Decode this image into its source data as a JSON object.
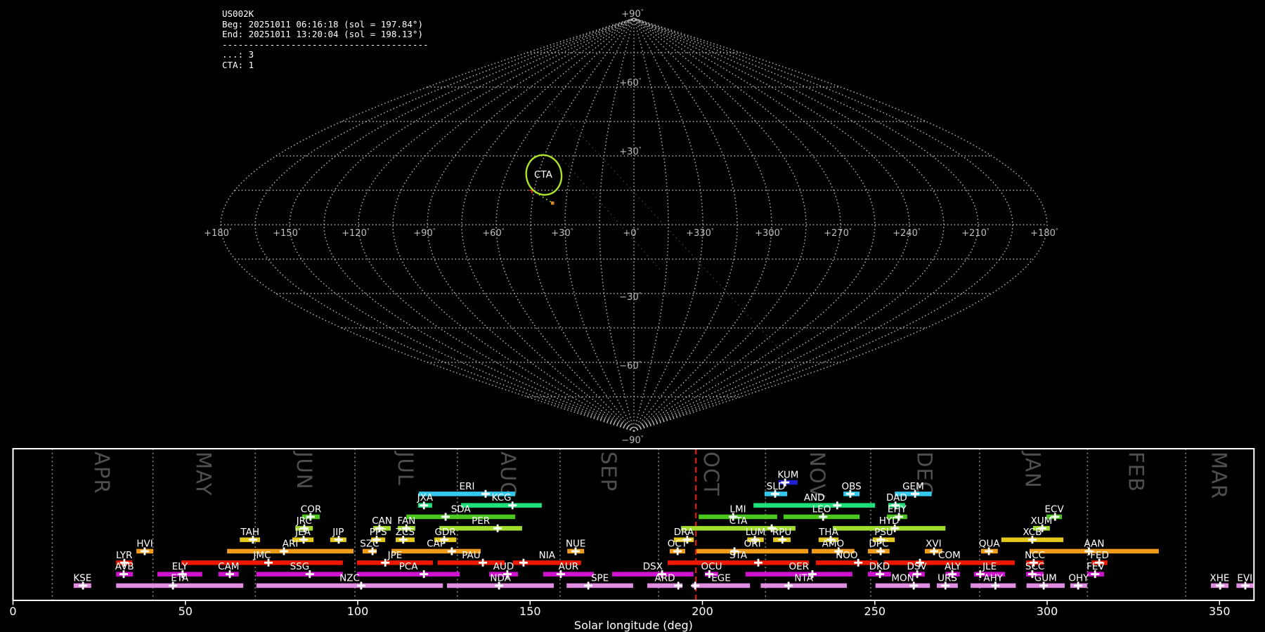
{
  "header": {
    "station": "US002K",
    "lines": [
      "US002K",
      "Beg: 20251011 06:16:18 (sol = 197.84°)",
      "End: 20251011 13:20:04 (sol = 198.13°)",
      "---------------------------------------",
      "...: 3",
      "CTA: 1"
    ]
  },
  "sky_map": {
    "grid_step_deg": 15,
    "grid_color": "#b2b2b2",
    "label_color": "#bdbdbd",
    "pole_labels": {
      "top": "+90",
      "bottom": "−90"
    },
    "lat_labels": [
      {
        "text": "+60",
        "lat": 60
      },
      {
        "text": "+30",
        "lat": 30
      },
      {
        "text": "−30",
        "lat": -30
      },
      {
        "text": "−60",
        "lat": -60
      }
    ],
    "lon_labels": [
      {
        "text": "+180",
        "lon": 180
      },
      {
        "text": "+150",
        "lon": 150
      },
      {
        "text": "+120",
        "lon": 120
      },
      {
        "text": "+90",
        "lon": 90
      },
      {
        "text": "+60",
        "lon": 60
      },
      {
        "text": "+30",
        "lon": 30
      },
      {
        "text": "+0",
        "lon": 0
      },
      {
        "text": "+330",
        "lon": -30
      },
      {
        "text": "+300",
        "lon": -60
      },
      {
        "text": "+270",
        "lon": -90
      },
      {
        "text": "+240",
        "lon": -120
      },
      {
        "text": "+210",
        "lon": -150
      },
      {
        "text": "+180",
        "lon": -180
      }
    ],
    "highlight": {
      "label": "CTA",
      "lon": 42.2,
      "lat": 21.7,
      "color": "#ade32a"
    },
    "meteor_trail": {
      "from": {
        "lon": 46.0,
        "lat": 15.0
      },
      "to": {
        "lon": 36.0,
        "lat": 9.5
      },
      "color": "#8be022",
      "start_marker_color": "#e03020",
      "end_marker_color": "#e08826"
    },
    "faint_trails": [
      {
        "from": {
          "lon": 63.3,
          "lat": 54.2
        },
        "to": {
          "lon": -156.0,
          "lat": -62.8
        }
      },
      {
        "from": {
          "lon": 35.5,
          "lat": 28.5
        },
        "to": {
          "lon": -12.4,
          "lat": -19.9
        }
      }
    ]
  },
  "chart_data": {
    "type": "timeline",
    "xlabel": "Solar longitude (deg)",
    "xlim": [
      0,
      360
    ],
    "x_ticks": [
      0,
      50,
      100,
      150,
      200,
      250,
      300,
      350
    ],
    "current_sol": 198.1,
    "current_sol_color": "#ea1515",
    "month_label_color": "#4f4f4f",
    "month_line_color": "#8f8f8f",
    "months": [
      {
        "name": "APR",
        "start": 11.4
      },
      {
        "name": "MAY",
        "start": 40.6
      },
      {
        "name": "JUN",
        "start": 70.3
      },
      {
        "name": "JUL",
        "start": 99.2
      },
      {
        "name": "AUG",
        "start": 128.9
      },
      {
        "name": "SEP",
        "start": 158.7
      },
      {
        "name": "OCT",
        "start": 187.3
      },
      {
        "name": "NOV",
        "start": 218.3
      },
      {
        "name": "DEC",
        "start": 248.8
      },
      {
        "name": "JAN",
        "start": 280.4
      },
      {
        "name": "FEB",
        "start": 311.7
      },
      {
        "name": "MAR",
        "start": 340.2
      }
    ],
    "rows": [
      {
        "key": "blue",
        "color": "#1f1fd4"
      },
      {
        "key": "cyan",
        "color": "#35c8ef"
      },
      {
        "key": "spring",
        "color": "#1fe07a"
      },
      {
        "key": "green",
        "color": "#4cc71e"
      },
      {
        "key": "ygreen",
        "color": "#a2dd2e"
      },
      {
        "key": "yellow",
        "color": "#e5c91a"
      },
      {
        "key": "orange",
        "color": "#f09c1a"
      },
      {
        "key": "red",
        "color": "#ec1801"
      },
      {
        "key": "magenta",
        "color": "#cf13cf"
      },
      {
        "key": "violet",
        "color": "#df8ce1"
      }
    ],
    "showers": [
      {
        "code": "KUM",
        "row": "blue",
        "start": 222.1,
        "end": 227.6,
        "peak": 224.0
      },
      {
        "code": "ERI",
        "row": "cyan",
        "start": 117.7,
        "end": 145.7,
        "peak": 137.1
      },
      {
        "code": "SLD",
        "row": "cyan",
        "start": 218.0,
        "end": 224.6,
        "peak": 221.1
      },
      {
        "code": "OBS",
        "row": "cyan",
        "start": 240.9,
        "end": 245.6,
        "peak": 242.9
      },
      {
        "code": "GEM",
        "row": "cyan",
        "start": 255.8,
        "end": 266.5,
        "peak": 261.7
      },
      {
        "code": "JXA",
        "row": "spring",
        "start": 117.5,
        "end": 121.6,
        "peak": 119.2
      },
      {
        "code": "KCG",
        "row": "spring",
        "start": 130.0,
        "end": 153.4,
        "peak": 144.9
      },
      {
        "code": "AND",
        "row": "spring",
        "start": 214.8,
        "end": 250.1,
        "peak": 239.1
      },
      {
        "code": "DAD",
        "row": "spring",
        "start": 253.9,
        "end": 258.8,
        "peak": 256.0
      },
      {
        "code": "COR",
        "row": "green",
        "start": 83.9,
        "end": 89.0,
        "peak": 86.3
      },
      {
        "code": "SDA",
        "row": "green",
        "start": 114.1,
        "end": 145.7,
        "peak": 125.5
      },
      {
        "code": "LMI",
        "row": "green",
        "start": 198.9,
        "end": 221.7,
        "peak": 208.9
      },
      {
        "code": "LEO",
        "row": "green",
        "start": 223.5,
        "end": 245.6,
        "peak": 235.0
      },
      {
        "code": "EHY",
        "row": "green",
        "start": 253.5,
        "end": 259.4,
        "peak": 257.0
      },
      {
        "code": "ECV",
        "row": "green",
        "start": 299.8,
        "end": 304.3,
        "peak": 302.3
      },
      {
        "code": "JRC",
        "row": "ygreen",
        "start": 81.9,
        "end": 87.0,
        "peak": 84.5
      },
      {
        "code": "CAN",
        "row": "ygreen",
        "start": 104.5,
        "end": 109.6,
        "peak": 106.3
      },
      {
        "code": "FAN",
        "row": "ygreen",
        "start": 111.6,
        "end": 116.7,
        "peak": 114.1
      },
      {
        "code": "PER",
        "row": "ygreen",
        "start": 123.7,
        "end": 147.7,
        "peak": 140.6
      },
      {
        "code": "CTA",
        "row": "ygreen",
        "start": 193.8,
        "end": 227.0,
        "peak": 220.1
      },
      {
        "code": "HYD",
        "row": "ygreen",
        "start": 237.8,
        "end": 270.5,
        "peak": 255.8
      },
      {
        "code": "XUM",
        "row": "ygreen",
        "start": 295.9,
        "end": 300.8,
        "peak": 298.6
      },
      {
        "code": "TAH",
        "row": "yellow",
        "start": 65.8,
        "end": 71.7,
        "peak": 69.6
      },
      {
        "code": "JEA",
        "row": "yellow",
        "start": 81.0,
        "end": 87.2,
        "peak": 84.3
      },
      {
        "code": "JIP",
        "row": "yellow",
        "start": 92.0,
        "end": 96.7,
        "peak": 94.5
      },
      {
        "code": "PPS",
        "row": "yellow",
        "start": 103.9,
        "end": 108.0,
        "peak": 105.5
      },
      {
        "code": "ZCS",
        "row": "yellow",
        "start": 111.0,
        "end": 116.5,
        "peak": 113.2
      },
      {
        "code": "GDR",
        "row": "yellow",
        "start": 122.2,
        "end": 128.6,
        "peak": 125.1
      },
      {
        "code": "DRA",
        "row": "yellow",
        "start": 191.7,
        "end": 197.5,
        "peak": 195.6
      },
      {
        "code": "LUM",
        "row": "yellow",
        "start": 213.0,
        "end": 217.8,
        "peak": 215.2
      },
      {
        "code": "RPU",
        "row": "yellow",
        "start": 220.5,
        "end": 225.6,
        "peak": 223.2
      },
      {
        "code": "THA",
        "row": "yellow",
        "start": 233.7,
        "end": 239.5,
        "peak": 237.2
      },
      {
        "code": "PSU",
        "row": "yellow",
        "start": 249.4,
        "end": 255.8,
        "peak": 251.7
      },
      {
        "code": "XCB",
        "row": "yellow",
        "start": 286.7,
        "end": 304.7,
        "peak": 295.7
      },
      {
        "code": "HVI",
        "row": "orange",
        "start": 35.8,
        "end": 40.7,
        "peak": 38.2
      },
      {
        "code": "ARI",
        "row": "orange",
        "start": 62.1,
        "end": 98.8,
        "peak": 78.6
      },
      {
        "code": "SZC",
        "row": "orange",
        "start": 101.4,
        "end": 105.5,
        "peak": 104.3
      },
      {
        "code": "CAP",
        "row": "orange",
        "start": 109.8,
        "end": 135.7,
        "peak": 127.3
      },
      {
        "code": "NUE",
        "row": "orange",
        "start": 160.8,
        "end": 165.7,
        "peak": 163.2
      },
      {
        "code": "OCT",
        "row": "orange",
        "start": 190.5,
        "end": 195.0,
        "peak": 192.8
      },
      {
        "code": "ORI",
        "row": "orange",
        "start": 198.3,
        "end": 230.7,
        "peak": 209.3
      },
      {
        "code": "AMO",
        "row": "orange",
        "start": 231.7,
        "end": 244.1,
        "peak": 239.5
      },
      {
        "code": "DPC",
        "row": "orange",
        "start": 248.0,
        "end": 254.3,
        "peak": 251.7
      },
      {
        "code": "XVI",
        "row": "orange",
        "start": 264.5,
        "end": 269.6,
        "peak": 267.2
      },
      {
        "code": "QUA",
        "row": "orange",
        "start": 280.8,
        "end": 285.7,
        "peak": 283.1
      },
      {
        "code": "AAN",
        "row": "orange",
        "start": 294.9,
        "end": 332.4,
        "peak": 312.1
      },
      {
        "code": "LYR",
        "row": "red",
        "start": 29.9,
        "end": 34.6,
        "peak": 32.3
      },
      {
        "code": "JMC",
        "row": "red",
        "start": 48.8,
        "end": 95.7,
        "peak": 74.1
      },
      {
        "code": "JPE",
        "row": "red",
        "start": 99.8,
        "end": 121.8,
        "peak": 108.0
      },
      {
        "code": "PAU",
        "row": "red",
        "start": 123.2,
        "end": 142.6,
        "peak": 136.3
      },
      {
        "code": "NIA",
        "row": "red",
        "start": 145.0,
        "end": 164.8,
        "peak": 148.1
      },
      {
        "code": "STA",
        "row": "red",
        "start": 189.9,
        "end": 230.9,
        "peak": 216.2
      },
      {
        "code": "NOO",
        "row": "red",
        "start": 232.9,
        "end": 250.8,
        "peak": 245.2
      },
      {
        "code": "COM",
        "row": "red",
        "start": 252.7,
        "end": 290.6,
        "peak": 263.1
      },
      {
        "code": "NCC",
        "row": "red",
        "start": 293.9,
        "end": 299.0,
        "peak": 296.1
      },
      {
        "code": "FED",
        "row": "red",
        "start": 312.9,
        "end": 317.5,
        "peak": 315.1
      },
      {
        "code": "AVB",
        "row": "magenta",
        "start": 29.9,
        "end": 34.8,
        "peak": 32.1
      },
      {
        "code": "ELY",
        "row": "magenta",
        "start": 41.9,
        "end": 54.9,
        "peak": 49.2
      },
      {
        "code": "CAM",
        "row": "magenta",
        "start": 59.6,
        "end": 65.5,
        "peak": 62.9
      },
      {
        "code": "SSG",
        "row": "magenta",
        "start": 70.6,
        "end": 95.7,
        "peak": 86.1
      },
      {
        "code": "PCA",
        "row": "magenta",
        "start": 99.8,
        "end": 129.6,
        "peak": 119.2
      },
      {
        "code": "AUD",
        "row": "magenta",
        "start": 138.1,
        "end": 146.5,
        "peak": 143.4
      },
      {
        "code": "AUR",
        "row": "magenta",
        "start": 153.8,
        "end": 168.5,
        "peak": 158.9
      },
      {
        "code": "DSX",
        "row": "magenta",
        "start": 173.8,
        "end": 197.4,
        "peak": 188.3
      },
      {
        "code": "OCU",
        "row": "magenta",
        "start": 200.7,
        "end": 204.6,
        "peak": 202.0
      },
      {
        "code": "OER",
        "row": "magenta",
        "start": 212.5,
        "end": 243.5,
        "peak": 231.9
      },
      {
        "code": "DKD",
        "row": "magenta",
        "start": 248.0,
        "end": 254.7,
        "peak": 251.5
      },
      {
        "code": "DSV",
        "row": "magenta",
        "start": 259.9,
        "end": 264.5,
        "peak": 262.3
      },
      {
        "code": "ALY",
        "row": "magenta",
        "start": 270.5,
        "end": 274.7,
        "peak": 272.5
      },
      {
        "code": "JLE",
        "row": "magenta",
        "start": 278.8,
        "end": 287.8,
        "peak": 280.6
      },
      {
        "code": "SCC",
        "row": "magenta",
        "start": 293.9,
        "end": 299.0,
        "peak": 295.7
      },
      {
        "code": "FEV",
        "row": "magenta",
        "start": 311.6,
        "end": 316.5,
        "peak": 313.9
      },
      {
        "code": "KSE",
        "row": "violet",
        "start": 17.6,
        "end": 22.7,
        "peak": 20.3
      },
      {
        "code": "ETA",
        "row": "violet",
        "start": 29.9,
        "end": 66.8,
        "peak": 46.4
      },
      {
        "code": "NZC",
        "row": "violet",
        "start": 70.6,
        "end": 124.7,
        "peak": 101.0
      },
      {
        "code": "NDA",
        "row": "violet",
        "start": 125.9,
        "end": 156.9,
        "peak": 141.0
      },
      {
        "code": "SPE",
        "row": "violet",
        "start": 160.6,
        "end": 179.9,
        "peak": 166.9
      },
      {
        "code": "ARD",
        "row": "violet",
        "start": 184.0,
        "end": 194.2,
        "peak": 193.0
      },
      {
        "code": "EGE",
        "row": "violet",
        "start": 197.0,
        "end": 213.8,
        "peak": 197.9
      },
      {
        "code": "NTA",
        "row": "violet",
        "start": 216.9,
        "end": 241.9,
        "peak": 225.0
      },
      {
        "code": "MON",
        "row": "violet",
        "start": 250.2,
        "end": 266.0,
        "peak": 261.3
      },
      {
        "code": "URS",
        "row": "violet",
        "start": 268.0,
        "end": 274.1,
        "peak": 270.5
      },
      {
        "code": "AHY",
        "row": "violet",
        "start": 277.8,
        "end": 290.9,
        "peak": 285.0
      },
      {
        "code": "GUM",
        "row": "violet",
        "start": 294.0,
        "end": 305.1,
        "peak": 299.0
      },
      {
        "code": "OHY",
        "row": "violet",
        "start": 306.7,
        "end": 311.6,
        "peak": 309.0
      },
      {
        "code": "XHE",
        "row": "violet",
        "start": 347.5,
        "end": 352.6,
        "peak": 350.2
      },
      {
        "code": "EVI",
        "row": "violet",
        "start": 354.9,
        "end": 359.8,
        "peak": 357.5
      }
    ]
  }
}
